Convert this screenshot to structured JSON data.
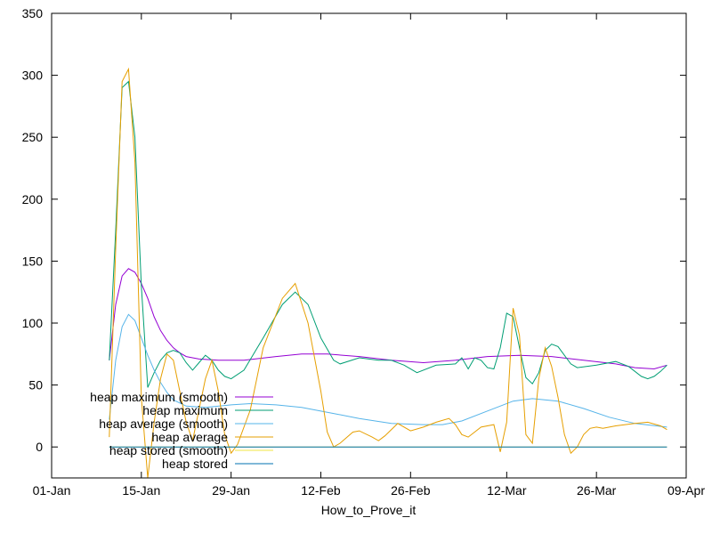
{
  "chart_data": {
    "type": "line",
    "xlabel": "How_to_Prove_it",
    "ylabel": "",
    "ylim": [
      -25,
      350
    ],
    "xlim": [
      "2024-01-01",
      "2024-04-09"
    ],
    "x_ticks": [
      {
        "date": "2024-01-01",
        "label": "01-Jan"
      },
      {
        "date": "2024-01-15",
        "label": "15-Jan"
      },
      {
        "date": "2024-01-29",
        "label": "29-Jan"
      },
      {
        "date": "2024-02-12",
        "label": "12-Feb"
      },
      {
        "date": "2024-02-26",
        "label": "26-Feb"
      },
      {
        "date": "2024-03-12",
        "label": "12-Mar"
      },
      {
        "date": "2024-03-26",
        "label": "26-Mar"
      },
      {
        "date": "2024-04-09",
        "label": "09-Apr"
      }
    ],
    "y_ticks": [
      0,
      50,
      100,
      150,
      200,
      250,
      300,
      350
    ],
    "grid": false,
    "legend_position": "bottom-left",
    "series": [
      {
        "name": "heap maximum (smooth)",
        "color": "#9400d3",
        "points": [
          [
            "2024-01-10",
            70
          ],
          [
            "2024-01-11",
            115
          ],
          [
            "2024-01-12",
            138
          ],
          [
            "2024-01-13",
            144
          ],
          [
            "2024-01-14",
            141
          ],
          [
            "2024-01-15",
            132
          ],
          [
            "2024-01-16",
            120
          ],
          [
            "2024-01-17",
            105
          ],
          [
            "2024-01-18",
            94
          ],
          [
            "2024-01-19",
            86
          ],
          [
            "2024-01-20",
            80
          ],
          [
            "2024-01-21",
            76
          ],
          [
            "2024-01-22",
            73
          ],
          [
            "2024-01-24",
            71
          ],
          [
            "2024-01-27",
            70
          ],
          [
            "2024-01-31",
            70
          ],
          [
            "2024-02-05",
            73
          ],
          [
            "2024-02-09",
            75
          ],
          [
            "2024-02-13",
            75
          ],
          [
            "2024-02-18",
            73
          ],
          [
            "2024-02-23",
            70
          ],
          [
            "2024-02-28",
            68
          ],
          [
            "2024-03-04",
            70
          ],
          [
            "2024-03-09",
            73
          ],
          [
            "2024-03-14",
            74
          ],
          [
            "2024-03-19",
            73
          ],
          [
            "2024-03-24",
            70
          ],
          [
            "2024-03-29",
            67
          ],
          [
            "2024-04-01",
            64
          ],
          [
            "2024-04-04",
            63
          ],
          [
            "2024-04-06",
            66
          ]
        ]
      },
      {
        "name": "heap maximum",
        "color": "#009e73",
        "points": [
          [
            "2024-01-10",
            70
          ],
          [
            "2024-01-11",
            175
          ],
          [
            "2024-01-12",
            290
          ],
          [
            "2024-01-13",
            295
          ],
          [
            "2024-01-14",
            250
          ],
          [
            "2024-01-15",
            130
          ],
          [
            "2024-01-16",
            48
          ],
          [
            "2024-01-17",
            60
          ],
          [
            "2024-01-18",
            70
          ],
          [
            "2024-01-19",
            76
          ],
          [
            "2024-01-20",
            78
          ],
          [
            "2024-01-21",
            76
          ],
          [
            "2024-01-22",
            68
          ],
          [
            "2024-01-23",
            62
          ],
          [
            "2024-01-24",
            68
          ],
          [
            "2024-01-25",
            74
          ],
          [
            "2024-01-26",
            70
          ],
          [
            "2024-01-27",
            62
          ],
          [
            "2024-01-28",
            57
          ],
          [
            "2024-01-29",
            55
          ],
          [
            "2024-01-31",
            62
          ],
          [
            "2024-02-03",
            88
          ],
          [
            "2024-02-06",
            115
          ],
          [
            "2024-02-08",
            125
          ],
          [
            "2024-02-10",
            115
          ],
          [
            "2024-02-12",
            88
          ],
          [
            "2024-02-14",
            70
          ],
          [
            "2024-02-15",
            67
          ],
          [
            "2024-02-18",
            72
          ],
          [
            "2024-02-21",
            70
          ],
          [
            "2024-02-23",
            70
          ],
          [
            "2024-02-25",
            66
          ],
          [
            "2024-02-27",
            60
          ],
          [
            "2024-03-01",
            66
          ],
          [
            "2024-03-04",
            67
          ],
          [
            "2024-03-05",
            72
          ],
          [
            "2024-03-06",
            63
          ],
          [
            "2024-03-07",
            72
          ],
          [
            "2024-03-08",
            70
          ],
          [
            "2024-03-09",
            64
          ],
          [
            "2024-03-10",
            63
          ],
          [
            "2024-03-11",
            80
          ],
          [
            "2024-03-12",
            108
          ],
          [
            "2024-03-13",
            105
          ],
          [
            "2024-03-14",
            80
          ],
          [
            "2024-03-15",
            56
          ],
          [
            "2024-03-16",
            51
          ],
          [
            "2024-03-17",
            60
          ],
          [
            "2024-03-18",
            78
          ],
          [
            "2024-03-19",
            83
          ],
          [
            "2024-03-20",
            81
          ],
          [
            "2024-03-21",
            74
          ],
          [
            "2024-03-22",
            67
          ],
          [
            "2024-03-23",
            64
          ],
          [
            "2024-03-26",
            66
          ],
          [
            "2024-03-29",
            69
          ],
          [
            "2024-03-31",
            65
          ],
          [
            "2024-04-02",
            57
          ],
          [
            "2024-04-03",
            55
          ],
          [
            "2024-04-04",
            57
          ],
          [
            "2024-04-05",
            61
          ],
          [
            "2024-04-06",
            66
          ]
        ]
      },
      {
        "name": "heap average (smooth)",
        "color": "#56b4e9",
        "points": [
          [
            "2024-01-10",
            22
          ],
          [
            "2024-01-11",
            70
          ],
          [
            "2024-01-12",
            97
          ],
          [
            "2024-01-13",
            107
          ],
          [
            "2024-01-14",
            102
          ],
          [
            "2024-01-15",
            88
          ],
          [
            "2024-01-16",
            74
          ],
          [
            "2024-01-17",
            62
          ],
          [
            "2024-01-18",
            52
          ],
          [
            "2024-01-19",
            44
          ],
          [
            "2024-01-20",
            38
          ],
          [
            "2024-01-22",
            33
          ],
          [
            "2024-01-25",
            32
          ],
          [
            "2024-01-29",
            34
          ],
          [
            "2024-02-01",
            35
          ],
          [
            "2024-02-05",
            34
          ],
          [
            "2024-02-09",
            32
          ],
          [
            "2024-02-14",
            27
          ],
          [
            "2024-02-18",
            23
          ],
          [
            "2024-02-23",
            19
          ],
          [
            "2024-02-28",
            18
          ],
          [
            "2024-03-02",
            18
          ],
          [
            "2024-03-05",
            21
          ],
          [
            "2024-03-09",
            29
          ],
          [
            "2024-03-13",
            37
          ],
          [
            "2024-03-16",
            39
          ],
          [
            "2024-03-20",
            37
          ],
          [
            "2024-03-24",
            31
          ],
          [
            "2024-03-28",
            24
          ],
          [
            "2024-04-01",
            19
          ],
          [
            "2024-04-06",
            16
          ]
        ]
      },
      {
        "name": "heap average",
        "color": "#e69f00",
        "points": [
          [
            "2024-01-10",
            8
          ],
          [
            "2024-01-11",
            160
          ],
          [
            "2024-01-12",
            295
          ],
          [
            "2024-01-13",
            305
          ],
          [
            "2024-01-14",
            230
          ],
          [
            "2024-01-15",
            40
          ],
          [
            "2024-01-16",
            -25
          ],
          [
            "2024-01-17",
            20
          ],
          [
            "2024-01-18",
            55
          ],
          [
            "2024-01-19",
            75
          ],
          [
            "2024-01-20",
            70
          ],
          [
            "2024-01-21",
            45
          ],
          [
            "2024-01-22",
            20
          ],
          [
            "2024-01-23",
            5
          ],
          [
            "2024-01-24",
            30
          ],
          [
            "2024-01-25",
            55
          ],
          [
            "2024-01-26",
            70
          ],
          [
            "2024-01-27",
            45
          ],
          [
            "2024-01-28",
            10
          ],
          [
            "2024-01-29",
            -5
          ],
          [
            "2024-01-30",
            2
          ],
          [
            "2024-02-01",
            30
          ],
          [
            "2024-02-03",
            80
          ],
          [
            "2024-02-06",
            120
          ],
          [
            "2024-02-08",
            132
          ],
          [
            "2024-02-10",
            100
          ],
          [
            "2024-02-12",
            45
          ],
          [
            "2024-02-13",
            12
          ],
          [
            "2024-02-14",
            0
          ],
          [
            "2024-02-15",
            3
          ],
          [
            "2024-02-17",
            12
          ],
          [
            "2024-02-18",
            13
          ],
          [
            "2024-02-20",
            8
          ],
          [
            "2024-02-21",
            5
          ],
          [
            "2024-02-22",
            9
          ],
          [
            "2024-02-24",
            19
          ],
          [
            "2024-02-26",
            13
          ],
          [
            "2024-02-28",
            16
          ],
          [
            "2024-03-01",
            20
          ],
          [
            "2024-03-03",
            23
          ],
          [
            "2024-03-04",
            18
          ],
          [
            "2024-03-05",
            10
          ],
          [
            "2024-03-06",
            8
          ],
          [
            "2024-03-08",
            16
          ],
          [
            "2024-03-10",
            18
          ],
          [
            "2024-03-11",
            -4
          ],
          [
            "2024-03-12",
            20
          ],
          [
            "2024-03-13",
            112
          ],
          [
            "2024-03-14",
            90
          ],
          [
            "2024-03-15",
            10
          ],
          [
            "2024-03-16",
            3
          ],
          [
            "2024-03-17",
            55
          ],
          [
            "2024-03-18",
            80
          ],
          [
            "2024-03-19",
            65
          ],
          [
            "2024-03-20",
            40
          ],
          [
            "2024-03-21",
            10
          ],
          [
            "2024-03-22",
            -5
          ],
          [
            "2024-03-23",
            0
          ],
          [
            "2024-03-24",
            10
          ],
          [
            "2024-03-25",
            15
          ],
          [
            "2024-03-26",
            16
          ],
          [
            "2024-03-27",
            15
          ],
          [
            "2024-03-29",
            17
          ],
          [
            "2024-04-01",
            19
          ],
          [
            "2024-04-03",
            20
          ],
          [
            "2024-04-05",
            17
          ],
          [
            "2024-04-06",
            14
          ]
        ]
      },
      {
        "name": "heap stored (smooth)",
        "color": "#f0e442",
        "points": [
          [
            "2024-01-10",
            0
          ],
          [
            "2024-04-06",
            0
          ]
        ]
      },
      {
        "name": "heap stored",
        "color": "#0072b2",
        "points": [
          [
            "2024-01-10",
            0
          ],
          [
            "2024-04-06",
            0
          ]
        ]
      }
    ]
  }
}
